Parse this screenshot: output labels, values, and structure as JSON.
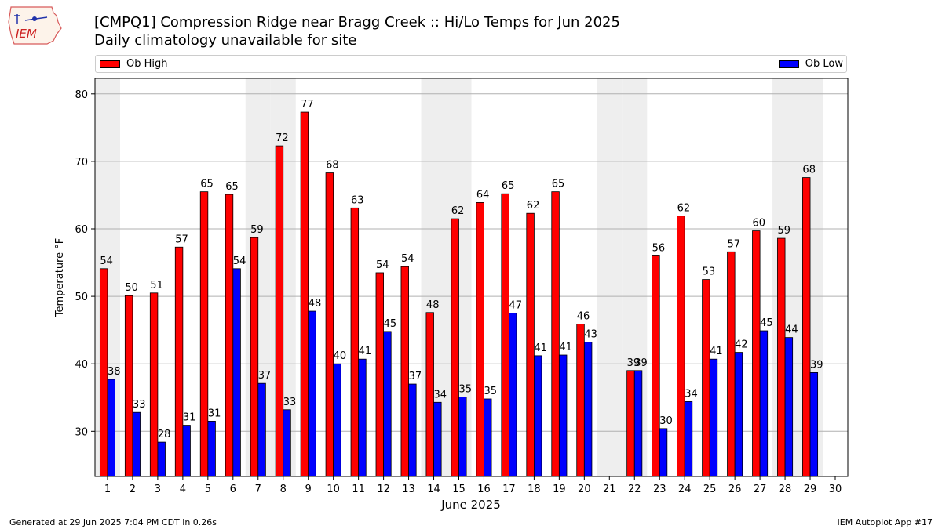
{
  "header": {
    "title_line1": "[CMPQ1] Compression Ridge near Bragg Creek :: Hi/Lo Temps for Jun 2025",
    "title_line2": "Daily climatology unavailable for site"
  },
  "logo": {
    "text": "IEM"
  },
  "legend": {
    "high_label": "Ob High",
    "low_label": "Ob Low"
  },
  "footer": {
    "generated": "Generated at 29 Jun 2025 7:04 PM CDT in 0.26s",
    "app": "IEM Autoplot App #17"
  },
  "colors": {
    "high": "#ff0000",
    "low": "#0000ff",
    "weekend_shade": "#eeeeee",
    "grid": "#b0b0b0"
  },
  "chart_data": {
    "type": "bar",
    "xlabel": "June 2025",
    "ylabel": "Temperature °F",
    "ylim": [
      23.3,
      82.3
    ],
    "yticks": [
      30,
      40,
      50,
      60,
      70,
      80
    ],
    "grid": "horizontal",
    "legend_placement": "top",
    "categories": [
      "1",
      "2",
      "3",
      "4",
      "5",
      "6",
      "7",
      "8",
      "9",
      "10",
      "11",
      "12",
      "13",
      "14",
      "15",
      "16",
      "17",
      "18",
      "19",
      "20",
      "21",
      "22",
      "23",
      "24",
      "25",
      "26",
      "27",
      "28",
      "29",
      "30"
    ],
    "shaded_days": [
      1,
      7,
      8,
      14,
      15,
      21,
      22,
      28,
      29
    ],
    "series": [
      {
        "name": "Ob High",
        "values": [
          54.1,
          50.1,
          50.5,
          57.3,
          65.5,
          65.1,
          58.7,
          72.3,
          77.3,
          68.3,
          63.1,
          53.5,
          54.4,
          47.6,
          61.5,
          63.9,
          65.2,
          62.3,
          65.5,
          45.9,
          null,
          39.0,
          56.0,
          61.9,
          52.5,
          56.6,
          59.7,
          58.6,
          67.6,
          null
        ],
        "labels": [
          "54",
          "50",
          "51",
          "57",
          "65",
          "65",
          "59",
          "72",
          "77",
          "68",
          "63",
          "54",
          "54",
          "48",
          "62",
          "64",
          "65",
          "62",
          "65",
          "46",
          "",
          "39",
          "56",
          "62",
          "53",
          "57",
          "60",
          "59",
          "68",
          ""
        ]
      },
      {
        "name": "Ob Low",
        "values": [
          37.7,
          32.8,
          28.4,
          30.9,
          31.5,
          54.1,
          37.1,
          33.2,
          47.8,
          40.0,
          40.7,
          44.8,
          37.0,
          34.3,
          35.1,
          34.8,
          47.5,
          41.2,
          41.3,
          43.2,
          null,
          39.0,
          30.4,
          34.4,
          40.7,
          41.7,
          44.9,
          43.9,
          38.7,
          null
        ],
        "labels": [
          "38",
          "33",
          "28",
          "31",
          "31",
          "54",
          "37",
          "33",
          "48",
          "40",
          "41",
          "45",
          "37",
          "34",
          "35",
          "35",
          "47",
          "41",
          "41",
          "43",
          "",
          "39",
          "30",
          "34",
          "41",
          "42",
          "45",
          "44",
          "39",
          ""
        ]
      }
    ]
  }
}
